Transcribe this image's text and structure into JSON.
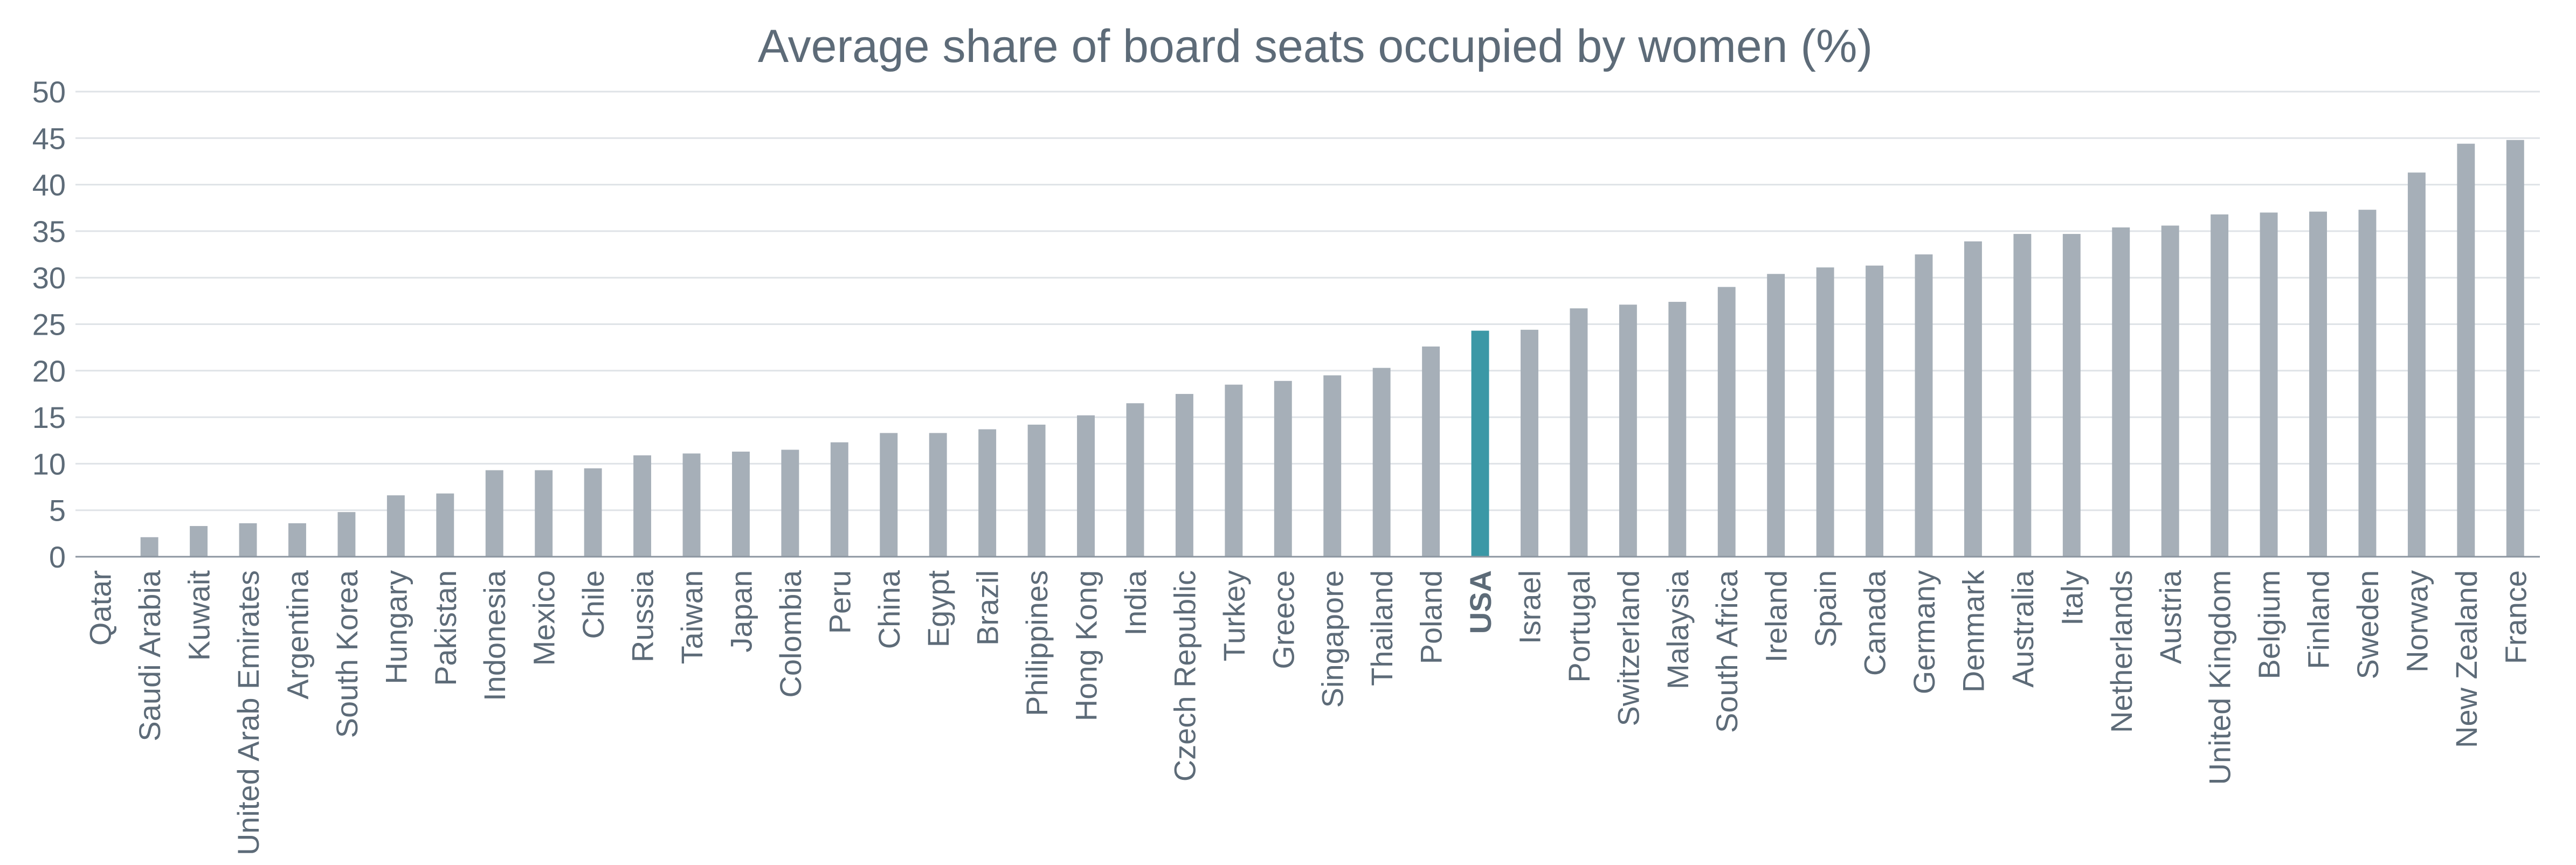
{
  "chart_data": {
    "type": "bar",
    "title": "Average share of board seats occupied by women (%)",
    "xlabel": "",
    "ylabel": "",
    "ylim": [
      0,
      50
    ],
    "yticks": [
      0,
      5,
      10,
      15,
      20,
      25,
      30,
      35,
      40,
      45,
      50
    ],
    "grid": true,
    "highlight_category": "USA",
    "colors": {
      "bar": "#a6afb8",
      "highlight": "#3b98a6",
      "highlight_label": "#3b98a6",
      "text": "#5d6b78"
    },
    "categories": [
      "Qatar",
      "Saudi Arabia",
      "Kuwait",
      "United Arab Emirates",
      "Argentina",
      "South Korea",
      "Hungary",
      "Pakistan",
      "Indonesia",
      "Mexico",
      "Chile",
      "Russia",
      "Taiwan",
      "Japan",
      "Colombia",
      "Peru",
      "China",
      "Egypt",
      "Brazil",
      "Philippines",
      "Hong Kong",
      "India",
      "Czech Republic",
      "Turkey",
      "Greece",
      "Singapore",
      "Thailand",
      "Poland",
      "USA",
      "Israel",
      "Portugal",
      "Switzerland",
      "Malaysia",
      "South Africa",
      "Ireland",
      "Spain",
      "Canada",
      "Germany",
      "Denmark",
      "Australia",
      "Italy",
      "Netherlands",
      "Austria",
      "United Kingdom",
      "Belgium",
      "Finland",
      "Sweden",
      "Norway",
      "New Zealand",
      "France"
    ],
    "values": [
      0,
      2.1,
      3.3,
      3.6,
      3.6,
      4.8,
      6.6,
      6.8,
      9.3,
      9.3,
      9.5,
      10.9,
      11.1,
      11.3,
      11.5,
      12.3,
      13.3,
      13.3,
      13.7,
      14.2,
      15.2,
      16.5,
      17.5,
      18.5,
      18.9,
      19.5,
      20.3,
      22.6,
      24.3,
      24.4,
      26.7,
      27.1,
      27.4,
      29.0,
      30.4,
      31.1,
      31.3,
      32.5,
      33.9,
      34.7,
      34.7,
      35.4,
      35.6,
      36.8,
      37.0,
      37.1,
      37.3,
      41.3,
      44.4,
      44.8
    ]
  }
}
